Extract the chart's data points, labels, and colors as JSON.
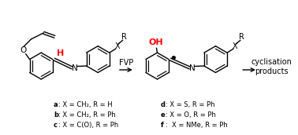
{
  "background_color": "#ffffff",
  "figsize": [
    3.78,
    1.72
  ],
  "dpi": 100,
  "red_color": "#ff0000",
  "black_color": "#000000",
  "font_size_label": 6.0,
  "font_size_fvp": 7.0,
  "font_size_cyclisation": 7.0,
  "font_size_atom": 7.5,
  "font_size_OH": 8.0,
  "font_size_H": 8.0,
  "font_size_dot": 13.0,
  "cyclisation_text": "cyclisation\nproducts",
  "label_a": "a",
  "label_b": "b",
  "label_c": "c",
  "label_d": "d",
  "label_e": "e",
  "label_f": "f",
  "rest_a": ": X = CH₂, R = H",
  "rest_b": ": X = CH₂, R = Ph",
  "rest_c": ": X = C(O), R = Ph",
  "rest_d": ": X = S, R = Ph",
  "rest_e": ": X = O, R = Ph",
  "rest_f": ":  X = NMe, R = Ph"
}
